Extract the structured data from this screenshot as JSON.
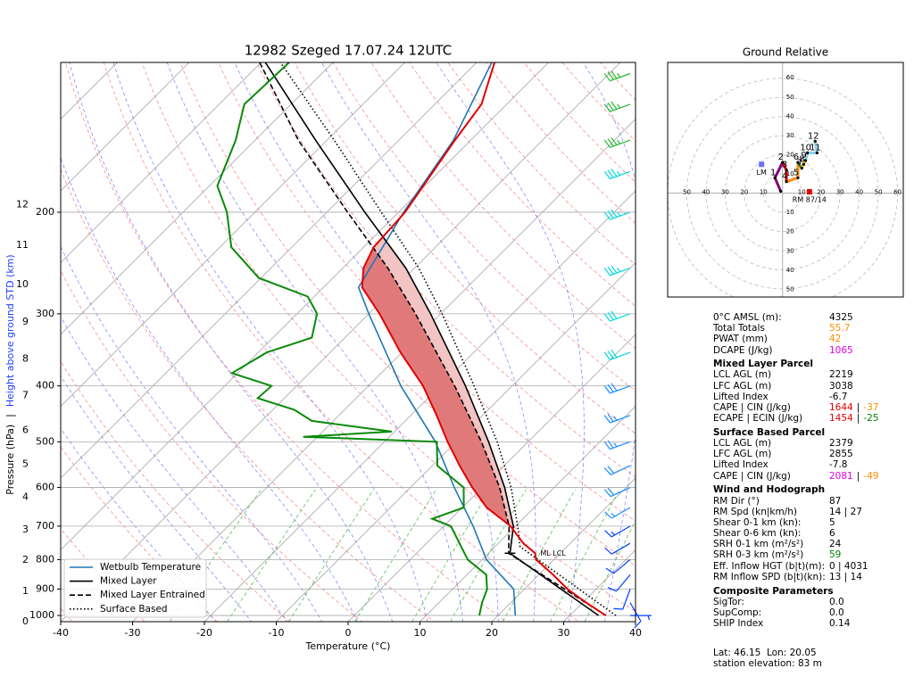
{
  "chart_data": [
    {
      "type": "skewt",
      "title": "12982 Szeged 17.07.24 12UTC",
      "xlabel": "Temperature (°C)",
      "ylabel": "Pressure (hPa)",
      "ylabel_separator": "|",
      "y2label": "Height above ground STD (km)",
      "xlim": [
        -40,
        40
      ],
      "ylim": [
        1025,
        110
      ],
      "log_y": true,
      "grid": true,
      "xticks": [
        -40,
        -30,
        -20,
        -10,
        0,
        10,
        20,
        30,
        40
      ],
      "yticks": [
        1000,
        900,
        800,
        700,
        600,
        500,
        400,
        300,
        200
      ],
      "height_ticks": [
        {
          "km": 0,
          "pressure": 1025
        },
        {
          "km": 1,
          "pressure": 908
        },
        {
          "km": 2,
          "pressure": 802
        },
        {
          "km": 3,
          "pressure": 711
        },
        {
          "km": 4,
          "pressure": 624
        },
        {
          "km": 5,
          "pressure": 547
        },
        {
          "km": 6,
          "pressure": 478
        },
        {
          "km": 7,
          "pressure": 416
        },
        {
          "km": 8,
          "pressure": 359
        },
        {
          "km": 9,
          "pressure": 310
        },
        {
          "km": 10,
          "pressure": 267
        },
        {
          "km": 11,
          "pressure": 228
        },
        {
          "km": 12,
          "pressure": 194
        }
      ],
      "profiles": [
        {
          "color": "#e00000",
          "pressure": [
            1000,
            950,
            900,
            850,
            800,
            780,
            750,
            700,
            650,
            600,
            550,
            500,
            450,
            400,
            350,
            300,
            270,
            250,
            230,
            200,
            150,
            130,
            110
          ],
          "values": [
            35,
            30.5,
            26,
            22,
            17.5,
            16.5,
            13.5,
            9.3,
            3.4,
            -1.4,
            -6.2,
            -11.2,
            -16.4,
            -22.4,
            -30.2,
            -38.5,
            -44.6,
            -47.1,
            -48.6,
            -49.1,
            -52.2,
            -53.5,
            -57.5
          ]
        },
        {
          "color": "#0a8a0a",
          "pressure": [
            1000,
            950,
            900,
            850,
            800,
            750,
            700,
            680,
            650,
            600,
            550,
            500,
            490,
            480,
            460,
            440,
            420,
            400,
            380,
            350,
            330,
            300,
            280,
            260,
            230,
            200,
            180,
            150,
            130,
            110
          ],
          "values": [
            17.4,
            16,
            14.8,
            12.7,
            8,
            4.6,
            1,
            -2.6,
            0.2,
            -2.6,
            -9.3,
            -12.7,
            -32,
            -20.4,
            -33,
            -37,
            -43.7,
            -43.5,
            -50.8,
            -48.8,
            -44.6,
            -47.2,
            -50.9,
            -60.3,
            -68.4,
            -73.9,
            -78.9,
            -82.7,
            -86.5,
            -86.1
          ]
        }
      ],
      "series": [
        {
          "name": "Wetbulb Temperature",
          "color": "#1f77b4",
          "style": "solid",
          "pressure": [
            1000,
            900,
            800,
            700,
            600,
            500,
            400,
            300,
            270,
            200,
            150,
            110
          ],
          "values": [
            22.4,
            18.5,
            10.6,
            4.1,
            -3.9,
            -12.9,
            -25.5,
            -40,
            -45.1,
            -49.3,
            -52.4,
            -57.9
          ]
        },
        {
          "name": "Mixed Layer",
          "color": "#000000",
          "style": "solid",
          "pressure": [
            1000,
            780,
            700,
            600,
            500,
            400,
            300,
            250,
            200,
            150,
            110
          ],
          "values": [
            34,
            13,
            9.7,
            3.1,
            -5.5,
            -16.5,
            -31.4,
            -41.2,
            -54.7,
            -71.6,
            -89.4
          ]
        },
        {
          "name": "Mixed Layer Entrained",
          "color": "#000000",
          "style": "dashed",
          "pressure": [
            1000,
            780,
            700,
            600,
            500,
            400,
            300,
            250,
            200,
            150,
            110
          ],
          "values": [
            35,
            12.8,
            9.1,
            2.4,
            -6.5,
            -18,
            -33.5,
            -43.7,
            -57.1,
            -74,
            -90.2
          ]
        },
        {
          "name": "Surface Based",
          "color": "#000000",
          "style": "dotted",
          "pressure": [
            1000,
            760,
            700,
            600,
            500,
            400,
            300,
            250,
            200,
            150,
            110
          ],
          "values": [
            36.4,
            13.5,
            10.3,
            4,
            -4.3,
            -15.3,
            -29.8,
            -39.4,
            -52.4,
            -69,
            -87.3
          ]
        }
      ],
      "cape_colors": [
        "#f2c4c4",
        "#e07a7a"
      ],
      "ml_lcl": {
        "label": "ML LCL",
        "pressure": 780
      },
      "legend": "lower left",
      "wind": {
        "pressure": [
          1000,
          950,
          900,
          850,
          800,
          750,
          700,
          650,
          600,
          550,
          500,
          450,
          400,
          350,
          300,
          250,
          200,
          170,
          150,
          130,
          115
        ],
        "speed": [
          5,
          10,
          10,
          10,
          10,
          10,
          15,
          15,
          20,
          20,
          25,
          25,
          30,
          30,
          30,
          35,
          35,
          35,
          35,
          35,
          35
        ],
        "direction": [
          90,
          150,
          200,
          220,
          230,
          240,
          240,
          240,
          245,
          245,
          250,
          250,
          250,
          250,
          250,
          250,
          250,
          250,
          250,
          250,
          250
        ],
        "colors": [
          "#0040ff",
          "#0040ff",
          "#0040ff",
          "#0040ff",
          "#0040ff",
          "#0040ff",
          "#0040ff",
          "#1a8cff",
          "#1a8cff",
          "#1a8cff",
          "#1a8cff",
          "#1a8cff",
          "#1a8cff",
          "#00d8e0",
          "#00d8e0",
          "#00d8e0",
          "#00d8e0",
          "#00d8e0",
          "#22bb33",
          "#22bb33",
          "#22bb33"
        ]
      }
    },
    {
      "type": "hodograph",
      "title": "Ground Relative",
      "xlim": [
        -60,
        63
      ],
      "ylim": [
        -54,
        68
      ],
      "rings": [
        10,
        20,
        30,
        40,
        50,
        60
      ],
      "u": [
        -1,
        -4,
        0,
        2,
        2,
        8,
        8,
        10,
        11,
        12,
        13,
        18,
        17
      ],
      "v": [
        1,
        8,
        16,
        12,
        6,
        8,
        16,
        13,
        15,
        17,
        21,
        21,
        27
      ],
      "labels": [
        null,
        1,
        2,
        3,
        4,
        5,
        6,
        7,
        8,
        9,
        10,
        11,
        12
      ],
      "colors": [
        "#800080",
        "#800080",
        "#dd0000",
        "#dd0000",
        "#ff8c00",
        "#ff8c00",
        "#2e8b57",
        "#ffb000",
        "#ffb000",
        "#87ceeb",
        "#87ceeb",
        "#87ceeb"
      ],
      "storm_motion": [
        {
          "label": "LM",
          "u": -11,
          "v": 15,
          "color": "#6f6fff"
        },
        {
          "label": "RM 87/14",
          "u": 14,
          "v": 0.7,
          "color": "#e00000"
        }
      ]
    }
  ],
  "parameters": [
    {
      "rows": [
        {
          "label": "0°C AMSL (m):",
          "values": [
            {
              "text": "4325"
            }
          ]
        },
        {
          "label": "Total Totals",
          "values": [
            {
              "text": "55.7",
              "color": "#ff8c00"
            }
          ]
        },
        {
          "label": "PWAT (mm)",
          "values": [
            {
              "text": "42",
              "color": "#ff8c00"
            }
          ]
        },
        {
          "label": "DCAPE (J/kg)",
          "values": [
            {
              "text": "1065",
              "color": "#e600e6"
            }
          ]
        }
      ]
    },
    {
      "title": "Mixed Layer Parcel",
      "rows": [
        {
          "label": "LCL AGL (m)",
          "values": [
            {
              "text": "2219"
            }
          ]
        },
        {
          "label": "LFC AGL (m)",
          "values": [
            {
              "text": "3038"
            }
          ]
        },
        {
          "label": "Lifted Index",
          "values": [
            {
              "text": "-6.7"
            }
          ]
        },
        {
          "label": "CAPE | CIN (J/kg)",
          "values": [
            {
              "text": "1644",
              "color": "#e00000"
            },
            {
              "text": "|"
            },
            {
              "text": "-37",
              "color": "#ff8c00"
            }
          ]
        },
        {
          "label": "ECAPE | ECIN (J/kg)",
          "values": [
            {
              "text": "1454",
              "color": "#e00000"
            },
            {
              "text": "|"
            },
            {
              "text": "-25",
              "color": "#008000"
            }
          ]
        }
      ]
    },
    {
      "title": "Surface Based Parcel",
      "rows": [
        {
          "label": "LCL AGL (m)",
          "values": [
            {
              "text": "2379"
            }
          ]
        },
        {
          "label": "LFC AGL (m)",
          "values": [
            {
              "text": "2855"
            }
          ]
        },
        {
          "label": "Lifted Index",
          "values": [
            {
              "text": "-7.8"
            }
          ]
        },
        {
          "label": "CAPE | CIN (J/kg)",
          "values": [
            {
              "text": "2081",
              "color": "#e600e6"
            },
            {
              "text": "|"
            },
            {
              "text": "-49",
              "color": "#ff8c00"
            }
          ]
        }
      ]
    },
    {
      "title": "Wind and Hodograph",
      "rows": [
        {
          "label": "RM Dir (°)",
          "values": [
            {
              "text": "87"
            }
          ]
        },
        {
          "label": "RM Spd (kn|km/h)",
          "values": [
            {
              "text": "14 | 27"
            }
          ]
        },
        {
          "label": "Shear 0-1 km (kn):",
          "values": [
            {
              "text": "5"
            }
          ]
        },
        {
          "label": "Shear 0-6 km (kn):",
          "values": [
            {
              "text": "6"
            }
          ]
        },
        {
          "label": "SRH 0-1 km (m²/s²)",
          "values": [
            {
              "text": "24"
            }
          ]
        },
        {
          "label": "SRH 0-3 km (m²/s²)",
          "values": [
            {
              "text": "59",
              "color": "#008000"
            }
          ]
        },
        {
          "label": "Eff. Inflow HGT (b|t)(m):",
          "values": [
            {
              "text": "0 | 4031"
            }
          ]
        },
        {
          "label": "RM Inflow SPD (b|t)(kn):",
          "values": [
            {
              "text": "13 | 14"
            }
          ]
        }
      ]
    },
    {
      "title": "Composite Parameters",
      "rows": [
        {
          "label": "SigTor:",
          "values": [
            {
              "text": "0.0"
            }
          ]
        },
        {
          "label": "SupComp:",
          "values": [
            {
              "text": "0.0"
            }
          ]
        },
        {
          "label": "SHIP Index",
          "values": [
            {
              "text": "0.14"
            }
          ]
        }
      ]
    }
  ],
  "footer": [
    "Lat: 46.15  Lon: 20.05",
    "station elevation: 83 m"
  ]
}
